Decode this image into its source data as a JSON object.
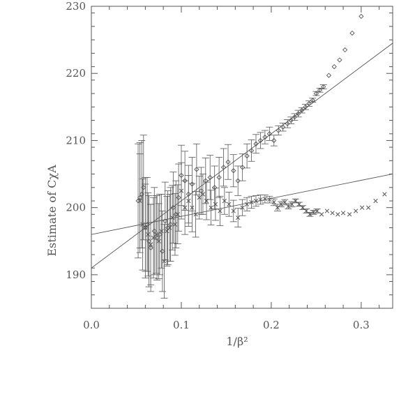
{
  "chart_data": {
    "type": "scatter",
    "title": "",
    "xlabel": "1/β²",
    "ylabel": "Estimate of CχA",
    "xlim": [
      0.0,
      0.335
    ],
    "ylim": [
      185,
      230
    ],
    "x_ticks": [
      "0.0",
      "0.1",
      "0.2",
      "0.3"
    ],
    "x_tick_values": [
      0.0,
      0.1,
      0.2,
      0.3
    ],
    "y_ticks": [
      "190",
      "200",
      "210",
      "220",
      "230"
    ],
    "y_tick_values": [
      190,
      200,
      210,
      220,
      230
    ],
    "grid": false,
    "colors": {
      "ink": "#555555"
    },
    "series": [
      {
        "marker": "diamond",
        "points": [
          {
            "x": 0.052,
            "y": 201.0,
            "e": 8.5
          },
          {
            "x": 0.054,
            "y": 201.5,
            "e": 8.2
          },
          {
            "x": 0.056,
            "y": 202.0,
            "e": 8.0
          },
          {
            "x": 0.058,
            "y": 203.0,
            "e": 7.8
          },
          {
            "x": 0.06,
            "y": 197.0,
            "e": 7.5
          },
          {
            "x": 0.062,
            "y": 197.5,
            "e": 7.0
          },
          {
            "x": 0.064,
            "y": 195.0,
            "e": 6.8
          },
          {
            "x": 0.066,
            "y": 194.0,
            "e": 6.5
          },
          {
            "x": 0.07,
            "y": 196.5,
            "e": 6.5
          },
          {
            "x": 0.073,
            "y": 195.5,
            "e": 6.3
          },
          {
            "x": 0.076,
            "y": 196.0,
            "e": 6.0
          },
          {
            "x": 0.079,
            "y": 193.5,
            "e": 6.0
          },
          {
            "x": 0.082,
            "y": 198.0,
            "e": 5.8
          },
          {
            "x": 0.085,
            "y": 197.0,
            "e": 5.5
          },
          {
            "x": 0.088,
            "y": 197.5,
            "e": 5.5
          },
          {
            "x": 0.091,
            "y": 200.0,
            "e": 5.3
          },
          {
            "x": 0.094,
            "y": 199.0,
            "e": 5.0
          },
          {
            "x": 0.097,
            "y": 201.5,
            "e": 5.0
          },
          {
            "x": 0.1,
            "y": 204.8,
            "e": 4.5
          },
          {
            "x": 0.104,
            "y": 204.0,
            "e": 4.4
          },
          {
            "x": 0.108,
            "y": 202.0,
            "e": 4.3
          },
          {
            "x": 0.112,
            "y": 203.5,
            "e": 4.0
          },
          {
            "x": 0.117,
            "y": 205.7,
            "e": 3.8
          },
          {
            "x": 0.122,
            "y": 202.5,
            "e": 3.5
          },
          {
            "x": 0.127,
            "y": 204.0,
            "e": 3.4
          },
          {
            "x": 0.132,
            "y": 204.5,
            "e": 3.3
          },
          {
            "x": 0.137,
            "y": 203.0,
            "e": 3.2
          },
          {
            "x": 0.142,
            "y": 204.5,
            "e": 3.0
          },
          {
            "x": 0.147,
            "y": 206.0,
            "e": 2.8
          },
          {
            "x": 0.152,
            "y": 206.8,
            "e": 2.6
          },
          {
            "x": 0.158,
            "y": 205.5,
            "e": 2.4
          },
          {
            "x": 0.163,
            "y": 204.0,
            "e": 2.2
          },
          {
            "x": 0.168,
            "y": 206.0,
            "e": 2.0
          },
          {
            "x": 0.173,
            "y": 207.7,
            "e": 1.8
          },
          {
            "x": 0.178,
            "y": 208.5,
            "e": 1.6
          },
          {
            "x": 0.183,
            "y": 209.5,
            "e": 1.4
          },
          {
            "x": 0.188,
            "y": 210.0,
            "e": 1.2
          },
          {
            "x": 0.193,
            "y": 210.5,
            "e": 1.0
          },
          {
            "x": 0.198,
            "y": 211.0,
            "e": 1.0
          },
          {
            "x": 0.203,
            "y": 210.0,
            "e": 0.8
          },
          {
            "x": 0.208,
            "y": 211.5,
            "e": 0.7
          },
          {
            "x": 0.213,
            "y": 212.0,
            "e": 0.6
          },
          {
            "x": 0.218,
            "y": 212.5,
            "e": 0.6
          },
          {
            "x": 0.222,
            "y": 213.0,
            "e": 0.5
          },
          {
            "x": 0.226,
            "y": 213.5,
            "e": 0.5
          },
          {
            "x": 0.23,
            "y": 214.0,
            "e": 0.5
          },
          {
            "x": 0.234,
            "y": 214.5,
            "e": 0.4
          },
          {
            "x": 0.238,
            "y": 215.0,
            "e": 0.4
          },
          {
            "x": 0.242,
            "y": 215.5,
            "e": 0.4
          },
          {
            "x": 0.246,
            "y": 216.0,
            "e": 0.3
          },
          {
            "x": 0.25,
            "y": 217.0,
            "e": 0.3
          },
          {
            "x": 0.254,
            "y": 217.5,
            "e": 0.3
          },
          {
            "x": 0.258,
            "y": 218.0,
            "e": 0.3
          },
          {
            "x": 0.264,
            "y": 219.7,
            "e": 0
          },
          {
            "x": 0.27,
            "y": 221.0,
            "e": 0
          },
          {
            "x": 0.276,
            "y": 222.0,
            "e": 0
          },
          {
            "x": 0.282,
            "y": 223.5,
            "e": 0
          },
          {
            "x": 0.29,
            "y": 226.0,
            "e": 0
          },
          {
            "x": 0.3,
            "y": 228.5,
            "e": 0
          }
        ]
      },
      {
        "marker": "cross",
        "points": [
          {
            "x": 0.054,
            "y": 201.0,
            "e": 7.0
          },
          {
            "x": 0.057,
            "y": 197.5,
            "e": 6.8
          },
          {
            "x": 0.06,
            "y": 197.0,
            "e": 6.5
          },
          {
            "x": 0.063,
            "y": 196.0,
            "e": 6.2
          },
          {
            "x": 0.066,
            "y": 194.5,
            "e": 6.0
          },
          {
            "x": 0.069,
            "y": 195.5,
            "e": 6.0
          },
          {
            "x": 0.072,
            "y": 196.0,
            "e": 5.8
          },
          {
            "x": 0.075,
            "y": 195.0,
            "e": 5.6
          },
          {
            "x": 0.078,
            "y": 196.5,
            "e": 5.5
          },
          {
            "x": 0.081,
            "y": 192.0,
            "e": 5.5
          },
          {
            "x": 0.084,
            "y": 196.5,
            "e": 5.2
          },
          {
            "x": 0.087,
            "y": 197.0,
            "e": 5.0
          },
          {
            "x": 0.09,
            "y": 198.5,
            "e": 4.8
          },
          {
            "x": 0.093,
            "y": 197.5,
            "e": 4.6
          },
          {
            "x": 0.096,
            "y": 199.0,
            "e": 4.4
          },
          {
            "x": 0.1,
            "y": 202.5,
            "e": 4.2
          },
          {
            "x": 0.104,
            "y": 200.0,
            "e": 4.0
          },
          {
            "x": 0.108,
            "y": 201.0,
            "e": 3.8
          },
          {
            "x": 0.112,
            "y": 200.0,
            "e": 3.6
          },
          {
            "x": 0.116,
            "y": 199.0,
            "e": 3.4
          },
          {
            "x": 0.12,
            "y": 201.5,
            "e": 3.2
          },
          {
            "x": 0.124,
            "y": 202.0,
            "e": 3.0
          },
          {
            "x": 0.128,
            "y": 201.0,
            "e": 2.8
          },
          {
            "x": 0.133,
            "y": 200.0,
            "e": 2.6
          },
          {
            "x": 0.138,
            "y": 200.5,
            "e": 2.4
          },
          {
            "x": 0.143,
            "y": 199.5,
            "e": 2.2
          },
          {
            "x": 0.148,
            "y": 201.0,
            "e": 2.0
          },
          {
            "x": 0.153,
            "y": 200.5,
            "e": 1.8
          },
          {
            "x": 0.158,
            "y": 199.5,
            "e": 1.6
          },
          {
            "x": 0.163,
            "y": 198.5,
            "e": 1.4
          },
          {
            "x": 0.168,
            "y": 200.0,
            "e": 1.2
          },
          {
            "x": 0.173,
            "y": 200.5,
            "e": 1.0
          },
          {
            "x": 0.178,
            "y": 200.8,
            "e": 0.9
          },
          {
            "x": 0.183,
            "y": 201.0,
            "e": 0.8
          },
          {
            "x": 0.188,
            "y": 201.2,
            "e": 0.7
          },
          {
            "x": 0.193,
            "y": 201.3,
            "e": 0.6
          },
          {
            "x": 0.198,
            "y": 201.2,
            "e": 0.5
          },
          {
            "x": 0.203,
            "y": 200.8,
            "e": 0.5
          },
          {
            "x": 0.207,
            "y": 200.0,
            "e": 0.5
          },
          {
            "x": 0.211,
            "y": 200.5,
            "e": 0.4
          },
          {
            "x": 0.215,
            "y": 200.8,
            "e": 0.4
          },
          {
            "x": 0.219,
            "y": 200.2,
            "e": 0.4
          },
          {
            "x": 0.223,
            "y": 200.5,
            "e": 0.4
          },
          {
            "x": 0.227,
            "y": 201.0,
            "e": 0.3
          },
          {
            "x": 0.231,
            "y": 200.5,
            "e": 0.3
          },
          {
            "x": 0.235,
            "y": 200.0,
            "e": 0.3
          },
          {
            "x": 0.239,
            "y": 199.5,
            "e": 0.3
          },
          {
            "x": 0.243,
            "y": 199.0,
            "e": 0.3
          },
          {
            "x": 0.247,
            "y": 199.3,
            "e": 0.3
          },
          {
            "x": 0.251,
            "y": 199.5,
            "e": 0.3
          },
          {
            "x": 0.256,
            "y": 199.0,
            "e": 0
          },
          {
            "x": 0.262,
            "y": 199.5,
            "e": 0
          },
          {
            "x": 0.268,
            "y": 199.2,
            "e": 0
          },
          {
            "x": 0.274,
            "y": 199.0,
            "e": 0
          },
          {
            "x": 0.28,
            "y": 199.2,
            "e": 0
          },
          {
            "x": 0.287,
            "y": 199.0,
            "e": 0
          },
          {
            "x": 0.294,
            "y": 199.5,
            "e": 0
          },
          {
            "x": 0.301,
            "y": 200.0,
            "e": 0
          },
          {
            "x": 0.308,
            "y": 200.0,
            "e": 0
          },
          {
            "x": 0.316,
            "y": 201.0,
            "e": 0
          },
          {
            "x": 0.326,
            "y": 202.0,
            "e": 0
          }
        ]
      }
    ],
    "fit_lines": [
      {
        "intercept": 191.0,
        "slope": 100.0
      },
      {
        "intercept": 196.0,
        "slope": 26.9
      }
    ]
  }
}
